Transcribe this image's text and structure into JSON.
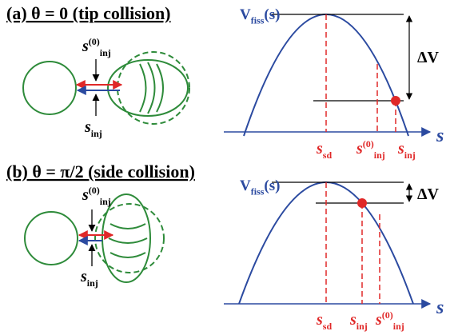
{
  "panels": [
    {
      "title": "(a) θ = 0 (tip collision)",
      "labels": {
        "s0inj": {
          "base": "s",
          "sup": "(0)",
          "sub": "inj"
        },
        "sinj": {
          "base": "s",
          "sub": "inj"
        }
      },
      "plot": {
        "potential": {
          "base": "V",
          "sub": "fiss",
          "tail": "(s)"
        },
        "delta": "ΔV",
        "axis": "s",
        "ssd": {
          "base": "s",
          "sub": "sd"
        },
        "s0inj": {
          "base": "s",
          "sup": "(0)",
          "sub": "inj"
        },
        "sinj": {
          "base": "s",
          "sub": "inj"
        }
      }
    },
    {
      "title": "(b) θ = π/2 (side collision)",
      "labels": {
        "s0inj": {
          "base": "s",
          "sup": "(0)",
          "sub": "inj"
        },
        "sinj": {
          "base": "s",
          "sub": "inj"
        }
      },
      "plot": {
        "potential": {
          "base": "V",
          "sub": "fiss",
          "tail": "(s)"
        },
        "delta": "ΔV",
        "axis": "s",
        "ssd": {
          "base": "s",
          "sub": "sd"
        },
        "sinj": {
          "base": "s",
          "sub": "inj"
        },
        "s0inj": {
          "base": "s",
          "sup": "(0)",
          "sub": "inj"
        }
      }
    }
  ]
}
